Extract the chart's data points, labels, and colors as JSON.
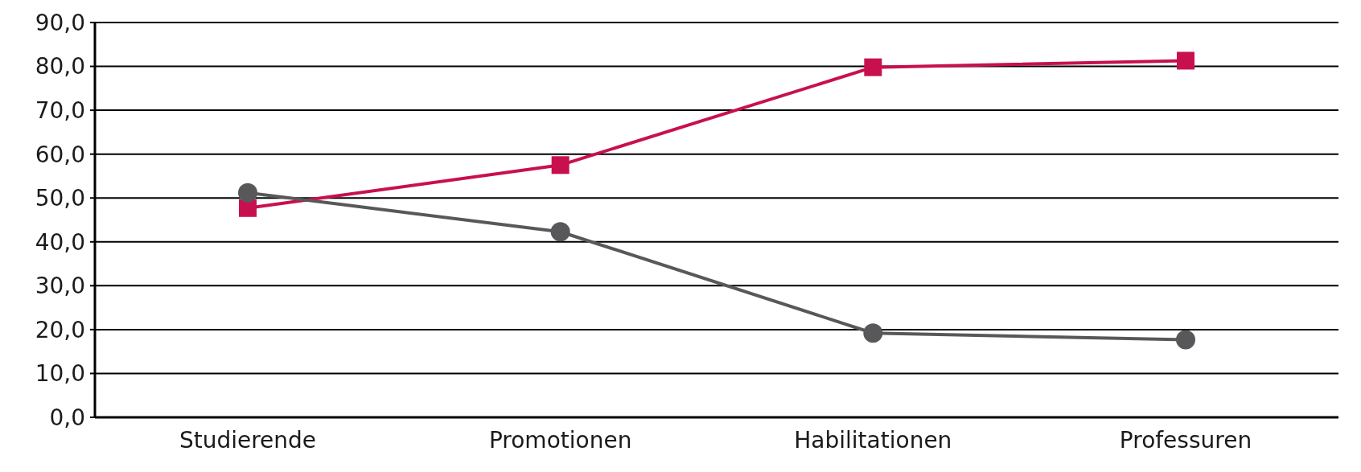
{
  "chart_data": {
    "type": "line",
    "categories": [
      "Studierende",
      "Promotionen",
      "Habilitationen",
      "Professuren"
    ],
    "series": [
      {
        "color": "#c8104f",
        "marker": "square",
        "values": [
          47.7,
          57.5,
          79.8,
          81.3
        ]
      },
      {
        "color": "#58585a",
        "marker": "circle",
        "values": [
          51.2,
          42.3,
          19.2,
          17.7
        ]
      }
    ],
    "ylim": [
      0,
      90
    ],
    "yticks": [
      {
        "value": 0,
        "label": "0,0"
      },
      {
        "value": 10,
        "label": "10,0"
      },
      {
        "value": 20,
        "label": "20,0"
      },
      {
        "value": 30,
        "label": "30,0"
      },
      {
        "value": 40,
        "label": "40,0"
      },
      {
        "value": 50,
        "label": "50,0"
      },
      {
        "value": 60,
        "label": "60,0"
      },
      {
        "value": 70,
        "label": "70,0"
      },
      {
        "value": 80,
        "label": "80,0"
      },
      {
        "value": 90,
        "label": "90,0"
      }
    ],
    "grid": "y",
    "line_style": "solid"
  }
}
